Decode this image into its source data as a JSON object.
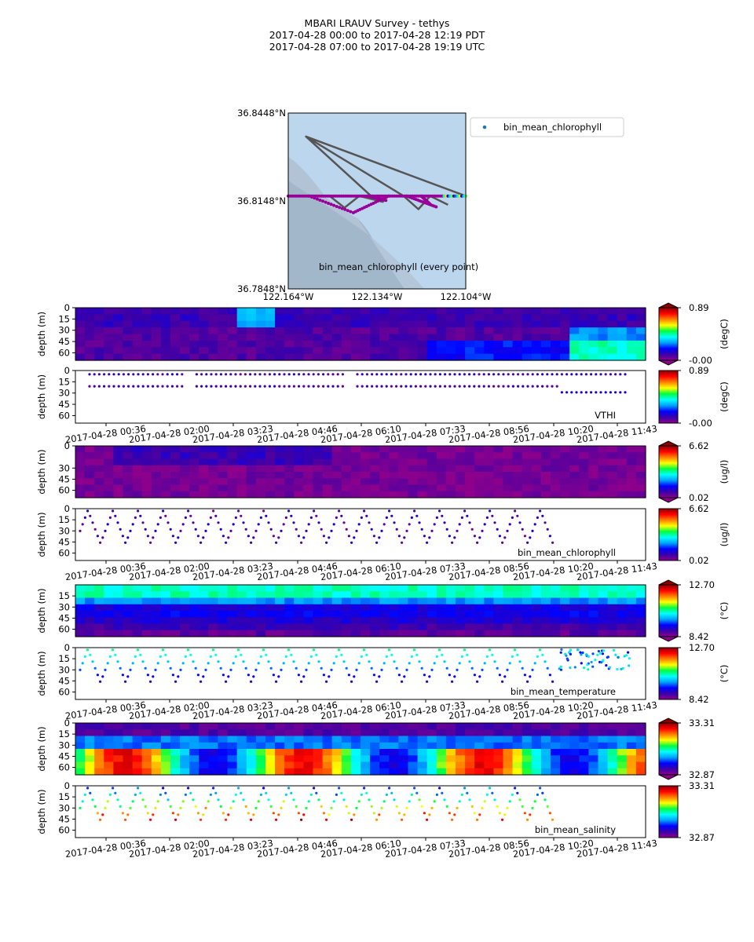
{
  "figure": {
    "title_lines": [
      "MBARI LRAUV Survey - tethys",
      "2017-04-28 00:00  to  2017-04-28 12:19 PDT",
      "2017-04-28 07:00  to  2017-04-28 19:19 UTC"
    ]
  },
  "colors": {
    "gradient_stops": [
      "#8c008c",
      "#3a00a8",
      "#0000ff",
      "#00a0ff",
      "#00ffff",
      "#00ff40",
      "#ffff00",
      "#ff8000",
      "#ff0000",
      "#8c0000"
    ],
    "map_water": "#bcd6ee",
    "map_track": "#555555",
    "map_points": "#990099"
  },
  "chart_data": [
    {
      "type": "scatter",
      "name": "map",
      "lat_ticks": [
        "36.8448°N",
        "36.8148°N",
        "36.7848°N"
      ],
      "lon_ticks": [
        "122.164°W",
        "122.134°W",
        "122.104°W"
      ],
      "xlim": [
        -122.164,
        -122.104
      ],
      "ylim": [
        36.7848,
        36.8448
      ],
      "legend": [
        "bin_mean_chlorophyll"
      ],
      "annotation": "bin_mean_chlorophyll (every point)",
      "track": [
        [
          -122.158,
          36.8368
        ],
        [
          -122.104,
          36.8165
        ],
        [
          -122.164,
          36.8165
        ],
        [
          -122.15,
          36.8165
        ],
        [
          -122.145,
          36.8125
        ],
        [
          -122.14,
          36.8165
        ],
        [
          -122.132,
          36.8145
        ],
        [
          -122.136,
          36.8165
        ],
        [
          -122.158,
          36.8368
        ],
        [
          -122.125,
          36.8165
        ],
        [
          -122.12,
          36.812
        ],
        [
          -122.116,
          36.8165
        ],
        [
          -122.11,
          36.8135
        ]
      ],
      "points_line": {
        "lat": 36.8165,
        "lon_start": -122.164,
        "lon_end": -122.104
      },
      "points_dives": [
        [
          [
            -122.157,
            36.8165
          ],
          [
            -122.142,
            36.8108
          ]
        ],
        [
          [
            -122.142,
            36.8108
          ],
          [
            -122.13,
            36.8165
          ]
        ],
        [
          [
            -122.137,
            36.8165
          ],
          [
            -122.131,
            36.815
          ]
        ],
        [
          [
            -122.124,
            36.8165
          ],
          [
            -122.114,
            36.8128
          ]
        ],
        [
          [
            -122.119,
            36.8165
          ],
          [
            -122.116,
            36.8136
          ]
        ]
      ]
    },
    {
      "type": "heatmap",
      "name": "VTHI-contour",
      "ylabel": "depth (m)",
      "yticks": [
        0,
        15,
        30,
        45,
        60
      ],
      "ylim": [
        0,
        70
      ],
      "colorbar": {
        "min": "-0.00",
        "max": "0.89",
        "unit": "(degC)"
      }
    },
    {
      "type": "scatter",
      "name": "VTHI-scatter",
      "label": "VTHI",
      "ylabel": "depth (m)",
      "yticks": [
        0,
        15,
        30,
        45,
        60
      ],
      "ylim": [
        0,
        70
      ],
      "xticks": [
        "2017-04-28 00:36",
        "2017-04-28 02:00",
        "2017-04-28 03:23",
        "2017-04-28 04:46",
        "2017-04-28 06:10",
        "2017-04-28 07:33",
        "2017-04-28 08:56",
        "2017-04-28 10:20",
        "2017-04-28 11:43"
      ],
      "colorbar": {
        "min": "-0.00",
        "max": "0.89",
        "unit": "(degC)"
      }
    },
    {
      "type": "heatmap",
      "name": "chlorophyll-contour",
      "ylabel": "depth (m)",
      "yticks": [
        0,
        30,
        45,
        60
      ],
      "ylim": [
        0,
        70
      ],
      "colorbar": {
        "min": "0.02",
        "max": "6.62",
        "unit": "(ug/l)"
      }
    },
    {
      "type": "scatter",
      "name": "chlorophyll-scatter",
      "label": "bin_mean_chlorophyll",
      "ylabel": "depth (m)",
      "yticks": [
        0,
        15,
        30,
        45,
        60
      ],
      "ylim": [
        0,
        70
      ],
      "xticks": [
        "2017-04-28 00:36",
        "2017-04-28 02:00",
        "2017-04-28 03:23",
        "2017-04-28 04:46",
        "2017-04-28 06:10",
        "2017-04-28 07:33",
        "2017-04-28 08:56",
        "2017-04-28 10:20",
        "2017-04-28 11:43"
      ],
      "colorbar": {
        "min": "0.02",
        "max": "6.62",
        "unit": "(ug/l)"
      }
    },
    {
      "type": "heatmap",
      "name": "temperature-contour",
      "ylabel": "depth (m)",
      "yticks": [
        15,
        30,
        45,
        60
      ],
      "ylim": [
        0,
        70
      ],
      "colorbar": {
        "min": "8.42",
        "max": "12.70",
        "unit": "(°C)"
      }
    },
    {
      "type": "scatter",
      "name": "temperature-scatter",
      "label": "bin_mean_temperature",
      "ylabel": "depth (m)",
      "yticks": [
        0,
        15,
        30,
        45,
        60
      ],
      "ylim": [
        0,
        70
      ],
      "xticks": [
        "2017-04-28 00:36",
        "2017-04-28 02:00",
        "2017-04-28 03:23",
        "2017-04-28 04:46",
        "2017-04-28 06:10",
        "2017-04-28 07:33",
        "2017-04-28 08:56",
        "2017-04-28 10:20",
        "2017-04-28 11:43"
      ],
      "colorbar": {
        "min": "8.42",
        "max": "12.70",
        "unit": "(°C)"
      }
    },
    {
      "type": "heatmap",
      "name": "salinity-contour",
      "ylabel": "depth (m)",
      "yticks": [
        0,
        15,
        30,
        45,
        60
      ],
      "ylim": [
        0,
        70
      ],
      "colorbar": {
        "min": "32.87",
        "max": "33.31",
        "unit": ""
      }
    },
    {
      "type": "scatter",
      "name": "salinity-scatter",
      "label": "bin_mean_salinity",
      "ylabel": "depth (m)",
      "yticks": [
        0,
        15,
        30,
        45,
        60
      ],
      "ylim": [
        0,
        70
      ],
      "xticks": [
        "2017-04-28 00:36",
        "2017-04-28 02:00",
        "2017-04-28 03:23",
        "2017-04-28 04:46",
        "2017-04-28 06:10",
        "2017-04-28 07:33",
        "2017-04-28 08:56",
        "2017-04-28 10:20",
        "2017-04-28 11:43"
      ],
      "colorbar": {
        "min": "32.87",
        "max": "33.31",
        "unit": ""
      }
    }
  ]
}
